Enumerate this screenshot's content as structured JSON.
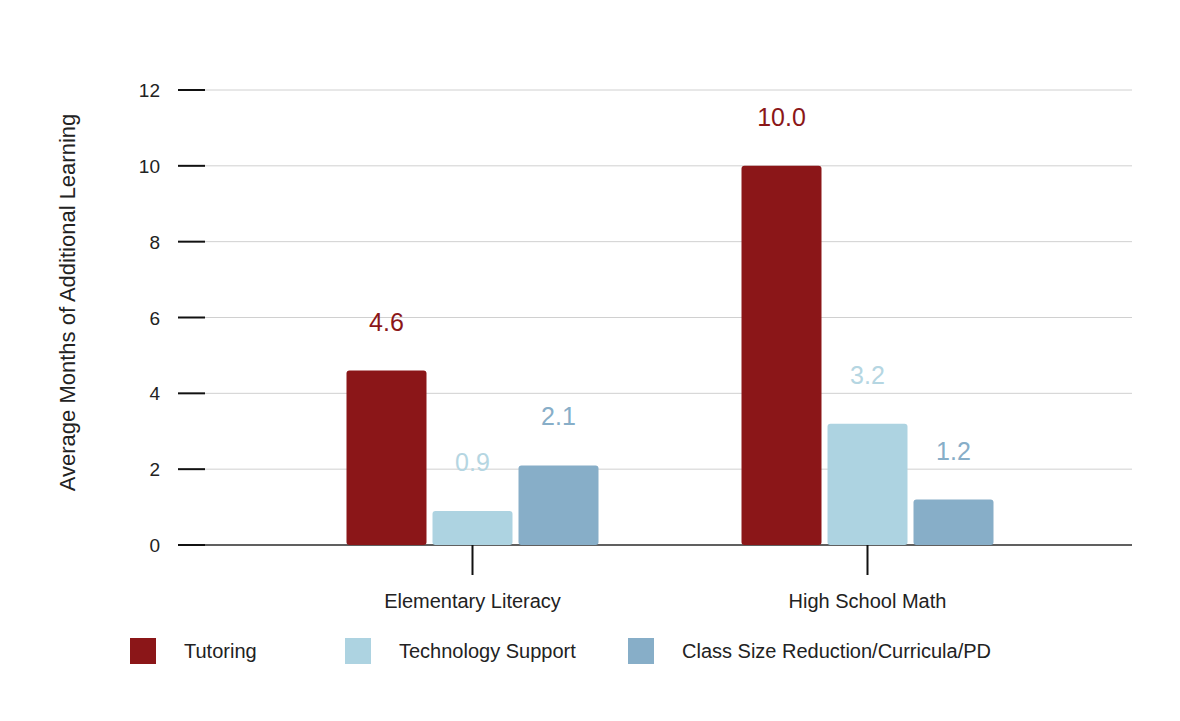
{
  "chart_data": {
    "type": "bar",
    "y_label": "Average Months of Additional Learning",
    "categories": [
      "Elementary Literacy",
      "High School Math"
    ],
    "series": [
      {
        "name": "Tutoring",
        "color": "#8b1618",
        "values": [
          4.6,
          10.0
        ],
        "value_labels": [
          "4.6",
          "10.0"
        ]
      },
      {
        "name": "Technology Support",
        "color": "#add3e1",
        "values": [
          0.9,
          3.2
        ]
      },
      {
        "name": "Class Size Reduction/Curricula/PD",
        "color": "#87aec8",
        "values": [
          2.1,
          1.2
        ]
      }
    ],
    "ylim": [
      0,
      12
    ],
    "yticks": [
      0,
      2,
      4,
      6,
      8,
      10,
      12
    ],
    "grid": true,
    "data_labels": true,
    "legend": "bottom"
  }
}
